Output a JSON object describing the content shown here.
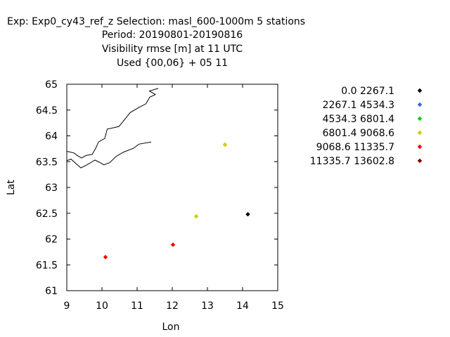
{
  "chart_data": {
    "type": "scatter",
    "title_lines": [
      "Exp: Exp0_cy43_ref_z   Selection: masl_600-1000m      5 stations",
      "Period: 20190801-20190816",
      "Visibility rmse [m] at  11 UTC",
      "Used {00,06} + 05 11"
    ],
    "xlabel": "Lon",
    "ylabel": "Lat",
    "xlim": [
      9,
      15
    ],
    "ylim": [
      61,
      65
    ],
    "xticks": [
      9,
      10,
      11,
      12,
      13,
      14,
      15
    ],
    "yticks": [
      61,
      61.5,
      62,
      62.5,
      63,
      63.5,
      64,
      64.5,
      65
    ],
    "xtick_labels": [
      "9",
      "10",
      "11",
      "12",
      "13",
      "14",
      "15"
    ],
    "ytick_labels": [
      "61",
      "61.5",
      "62",
      "62.5",
      "63",
      "63.5",
      "64",
      "64.5",
      "65"
    ],
    "legend_position": "right",
    "legend": [
      {
        "label": "0.0 2267.1",
        "color": "#000000"
      },
      {
        "label": "2267.1 4534.3",
        "color": "#3366ff"
      },
      {
        "label": "4534.3 6801.4",
        "color": "#00cc00"
      },
      {
        "label": "6801.4 9068.6",
        "color": "#cccc00"
      },
      {
        "label": "9068.6 11335.7",
        "color": "#ee0000"
      },
      {
        "label": "11335.7 13602.8",
        "color": "#800000"
      }
    ],
    "points": [
      {
        "lon": 14.15,
        "lat": 62.48,
        "color": "#000000"
      },
      {
        "lon": 13.5,
        "lat": 63.83,
        "color": "#cccc00"
      },
      {
        "lon": 12.68,
        "lat": 62.44,
        "color": "#cccc00"
      },
      {
        "lon": 12.02,
        "lat": 61.89,
        "color": "#ee0000"
      },
      {
        "lon": 10.1,
        "lat": 61.65,
        "color": "#ee0000"
      }
    ],
    "coastline": [
      [
        [
          11.6,
          64.92
        ],
        [
          11.35,
          64.87
        ],
        [
          11.52,
          64.8
        ],
        [
          11.36,
          64.75
        ],
        [
          11.25,
          64.62
        ],
        [
          11.05,
          64.55
        ],
        [
          10.8,
          64.45
        ],
        [
          10.65,
          64.32
        ],
        [
          10.48,
          64.18
        ],
        [
          10.15,
          64.13
        ],
        [
          10.08,
          63.95
        ],
        [
          9.9,
          63.88
        ],
        [
          9.83,
          63.77
        ],
        [
          9.72,
          63.64
        ],
        [
          9.55,
          63.62
        ],
        [
          9.42,
          63.57
        ],
        [
          9.32,
          63.61
        ],
        [
          9.2,
          63.67
        ],
        [
          9.0,
          63.7
        ]
      ],
      [
        [
          11.4,
          63.88
        ],
        [
          11.05,
          63.84
        ],
        [
          10.9,
          63.76
        ],
        [
          10.6,
          63.68
        ],
        [
          10.4,
          63.6
        ],
        [
          10.22,
          63.48
        ],
        [
          10.05,
          63.44
        ],
        [
          9.95,
          63.48
        ],
        [
          9.8,
          63.53
        ],
        [
          9.7,
          63.49
        ],
        [
          9.55,
          63.43
        ],
        [
          9.4,
          63.38
        ],
        [
          9.2,
          63.5
        ],
        [
          9.12,
          63.55
        ],
        [
          9.0,
          63.52
        ]
      ]
    ]
  }
}
